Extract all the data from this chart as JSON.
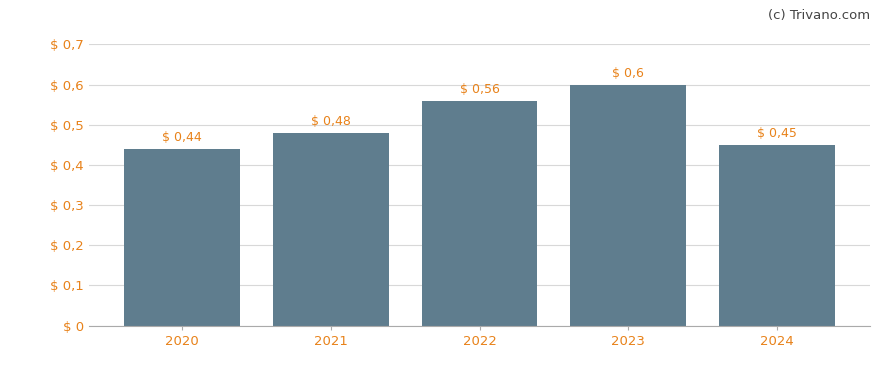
{
  "categories": [
    "2020",
    "2021",
    "2022",
    "2023",
    "2024"
  ],
  "values": [
    0.44,
    0.48,
    0.56,
    0.6,
    0.45
  ],
  "labels": [
    "$ 0,44",
    "$ 0,48",
    "$ 0,56",
    "$ 0,6",
    "$ 0,45"
  ],
  "bar_color": "#5f7d8e",
  "background_color": "#ffffff",
  "ylim": [
    0,
    0.7
  ],
  "yticks": [
    0.0,
    0.1,
    0.2,
    0.3,
    0.4,
    0.5,
    0.6,
    0.7
  ],
  "ytick_labels": [
    "$ 0",
    "$ 0,1",
    "$ 0,2",
    "$ 0,3",
    "$ 0,4",
    "$ 0,5",
    "$ 0,6",
    "$ 0,7"
  ],
  "grid_color": "#d8d8d8",
  "watermark": "(c) Trivano.com",
  "watermark_color": "#444444",
  "bar_width": 0.78,
  "label_fontsize": 9.0,
  "tick_fontsize": 9.5,
  "watermark_fontsize": 9.5,
  "label_color": "#e8821a",
  "ytick_color": "#e8821a",
  "xtick_color": "#e8821a"
}
